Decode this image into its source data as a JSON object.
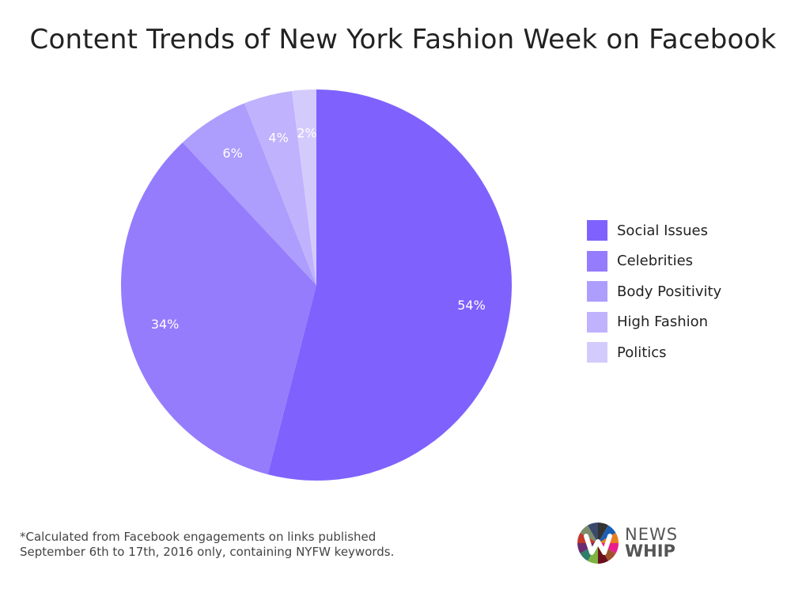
{
  "chart_data": {
    "type": "pie",
    "title": "Content Trends of New York Fashion Week on Facebook",
    "slices": [
      {
        "name": "Social Issues",
        "value": 54,
        "label": "54%",
        "color": "#7f62fd"
      },
      {
        "name": "Celebrities",
        "value": 34,
        "label": "34%",
        "color": "#957cfd"
      },
      {
        "name": "Body Positivity",
        "value": 6,
        "label": "6%",
        "color": "#ad9dfd"
      },
      {
        "name": "High Fashion",
        "value": 4,
        "label": "4%",
        "color": "#c0b2fd"
      },
      {
        "name": "Politics",
        "value": 2,
        "label": "2%",
        "color": "#d4cbfd"
      }
    ],
    "start_angle": "top",
    "direction": "clockwise",
    "legend_placement": "right"
  },
  "footnote": {
    "line1": "*Calculated from Facebook engagements on links published",
    "line2": "September 6th to 17th, 2016 only, containing NYFW keywords."
  },
  "logo": {
    "line1": "NEWS",
    "line2": "WHIP"
  }
}
